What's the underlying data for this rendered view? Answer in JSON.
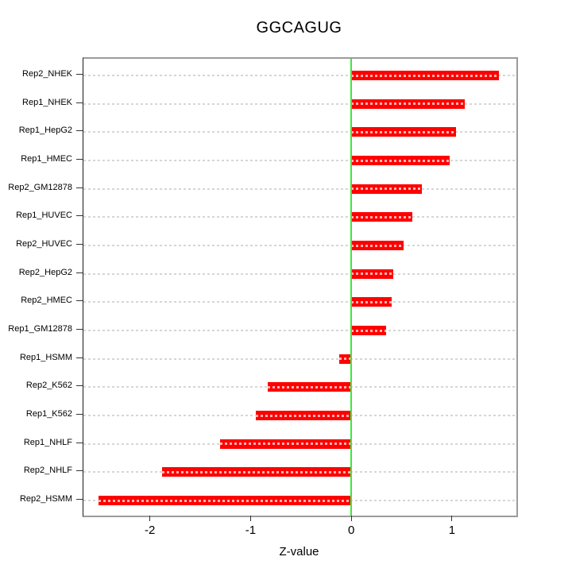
{
  "chart_data": {
    "type": "bar",
    "orientation": "horizontal",
    "title": "GGCAGUG",
    "xlabel": "Z-value",
    "ylabel": "",
    "categories": [
      "Rep2_NHEK",
      "Rep1_NHEK",
      "Rep1_HepG2",
      "Rep1_HMEC",
      "Rep2_GM12878",
      "Rep1_HUVEC",
      "Rep2_HUVEC",
      "Rep2_HepG2",
      "Rep2_HMEC",
      "Rep1_GM12878",
      "Rep1_HSMM",
      "Rep2_K562",
      "Rep1_K562",
      "Rep1_NHLF",
      "Rep2_NHLF",
      "Rep2_HSMM"
    ],
    "values": [
      1.47,
      1.13,
      1.04,
      0.98,
      0.7,
      0.61,
      0.52,
      0.42,
      0.4,
      0.35,
      -0.12,
      -0.83,
      -0.95,
      -1.3,
      -1.88,
      -2.51
    ],
    "x_ticks": [
      -2,
      -1,
      0,
      1
    ],
    "xlim": [
      -2.66,
      1.64
    ],
    "zero_reference_line": 0,
    "grid": "dashed horizontal reference line per category",
    "legend": "none",
    "colors": {
      "bar": "#ff0000",
      "zero_line": "#3ce83c",
      "grid_dash": "#d6d6d6",
      "plot_border": "#9b9b9b",
      "axis_text": "#000000"
    }
  }
}
